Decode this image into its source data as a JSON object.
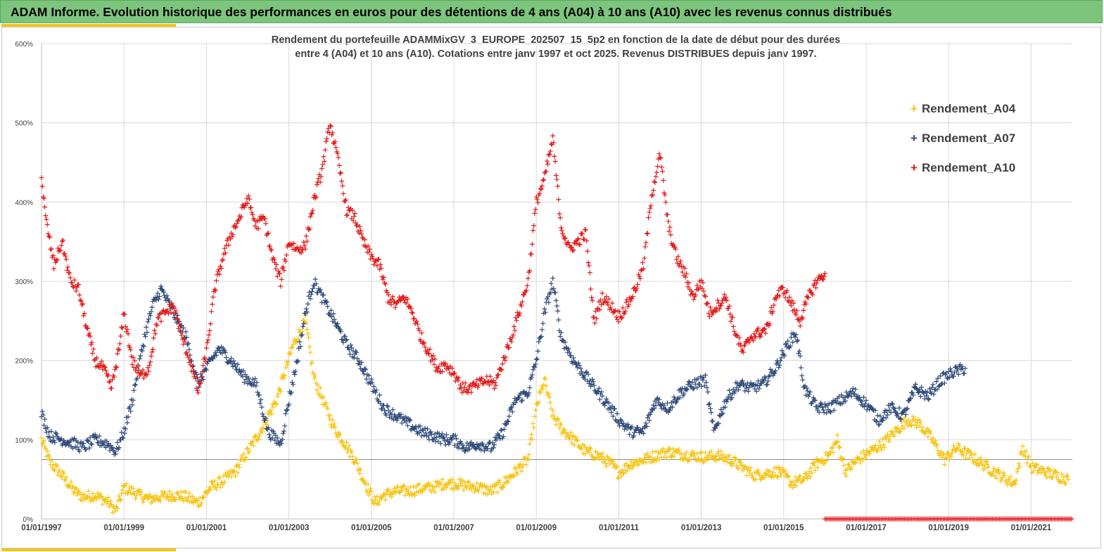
{
  "header": {
    "title": "ADAM Informe. Evolution historique des performances en euros pour des détentions de 4 ans (A04) à 10 ans (A10) avec les revenus connus distribués"
  },
  "colors": {
    "banner": "#7dc57d",
    "accent": "#f5c518"
  },
  "chart_data": {
    "type": "scatter",
    "marker": "plus",
    "title_line1": "Rendement du portefeuille ADAMMixGV_3_EUROPE_202507_15_5p2  en fonction de la date de début pour des durées",
    "title_line2": "entre 4 (A04) et 10 ans (A10). Cotations entre janv 1997 et oct 2025. Revenus DISTRIBUES depuis janv 1997.",
    "xlabel": "",
    "ylabel": "",
    "x_range": [
      "1997-01-01",
      "2022-01-01"
    ],
    "x_ticks": [
      "01/01/1997",
      "01/01/1999",
      "01/01/2001",
      "01/01/2003",
      "01/01/2005",
      "01/01/2007",
      "01/01/2009",
      "01/01/2011",
      "01/01/2013",
      "01/01/2015",
      "01/01/2017",
      "01/01/2019",
      "01/01/2021"
    ],
    "y_range": [
      0,
      600
    ],
    "y_ticks": [
      "0%",
      "100%",
      "200%",
      "300%",
      "400%",
      "500%",
      "600%"
    ],
    "reference_line_y": 75,
    "grid": true,
    "legend_position": "top-right",
    "series": [
      {
        "name": "Rendement_A04",
        "color": "#f5c518",
        "points": [
          [
            1997.0,
            100
          ],
          [
            1997.2,
            72
          ],
          [
            1997.5,
            55
          ],
          [
            1997.8,
            35
          ],
          [
            1998.0,
            28
          ],
          [
            1998.3,
            30
          ],
          [
            1998.6,
            22
          ],
          [
            1998.8,
            10
          ],
          [
            1999.0,
            40
          ],
          [
            1999.3,
            32
          ],
          [
            1999.6,
            25
          ],
          [
            1999.9,
            28
          ],
          [
            2000.2,
            30
          ],
          [
            2000.5,
            28
          ],
          [
            2000.8,
            20
          ],
          [
            2001.1,
            40
          ],
          [
            2001.4,
            48
          ],
          [
            2001.7,
            60
          ],
          [
            2002.0,
            85
          ],
          [
            2002.3,
            110
          ],
          [
            2002.5,
            130
          ],
          [
            2002.7,
            150
          ],
          [
            2002.9,
            185
          ],
          [
            2003.1,
            220
          ],
          [
            2003.3,
            240
          ],
          [
            2003.4,
            250
          ],
          [
            2003.6,
            180
          ],
          [
            2003.9,
            140
          ],
          [
            2004.1,
            115
          ],
          [
            2004.3,
            100
          ],
          [
            2004.6,
            75
          ],
          [
            2004.9,
            40
          ],
          [
            2005.1,
            20
          ],
          [
            2005.3,
            30
          ],
          [
            2005.6,
            35
          ],
          [
            2005.9,
            35
          ],
          [
            2006.2,
            38
          ],
          [
            2006.5,
            40
          ],
          [
            2006.8,
            45
          ],
          [
            2007.0,
            45
          ],
          [
            2007.3,
            42
          ],
          [
            2007.6,
            40
          ],
          [
            2007.9,
            35
          ],
          [
            2008.2,
            45
          ],
          [
            2008.5,
            60
          ],
          [
            2008.8,
            75
          ],
          [
            2009.0,
            140
          ],
          [
            2009.2,
            175
          ],
          [
            2009.4,
            130
          ],
          [
            2009.6,
            115
          ],
          [
            2009.9,
            100
          ],
          [
            2010.2,
            85
          ],
          [
            2010.5,
            80
          ],
          [
            2010.8,
            70
          ],
          [
            2011.0,
            58
          ],
          [
            2011.3,
            70
          ],
          [
            2011.6,
            75
          ],
          [
            2011.9,
            80
          ],
          [
            2012.2,
            85
          ],
          [
            2012.5,
            82
          ],
          [
            2012.8,
            80
          ],
          [
            2013.1,
            78
          ],
          [
            2013.4,
            80
          ],
          [
            2013.7,
            75
          ],
          [
            2014.0,
            65
          ],
          [
            2014.3,
            55
          ],
          [
            2014.6,
            58
          ],
          [
            2014.9,
            60
          ],
          [
            2015.2,
            45
          ],
          [
            2015.5,
            50
          ],
          [
            2015.8,
            70
          ],
          [
            2016.1,
            80
          ],
          [
            2016.3,
            100
          ],
          [
            2016.5,
            60
          ],
          [
            2016.8,
            75
          ],
          [
            2017.1,
            85
          ],
          [
            2017.4,
            95
          ],
          [
            2017.7,
            110
          ],
          [
            2018.0,
            125
          ],
          [
            2018.3,
            120
          ],
          [
            2018.6,
            100
          ],
          [
            2018.9,
            75
          ],
          [
            2019.2,
            90
          ],
          [
            2019.5,
            80
          ],
          [
            2019.8,
            70
          ],
          [
            2020.1,
            60
          ],
          [
            2020.4,
            50
          ],
          [
            2020.6,
            45
          ],
          [
            2020.8,
            90
          ],
          [
            2021.0,
            65
          ],
          [
            2021.3,
            60
          ],
          [
            2021.6,
            55
          ],
          [
            2021.9,
            50
          ]
        ]
      },
      {
        "name": "Rendement_A07",
        "color": "#2e4a7a",
        "points": [
          [
            1997.0,
            133
          ],
          [
            1997.2,
            105
          ],
          [
            1997.5,
            100
          ],
          [
            1997.8,
            95
          ],
          [
            1998.0,
            90
          ],
          [
            1998.3,
            100
          ],
          [
            1998.6,
            95
          ],
          [
            1998.8,
            85
          ],
          [
            1999.0,
            110
          ],
          [
            1999.2,
            150
          ],
          [
            1999.5,
            230
          ],
          [
            1999.7,
            270
          ],
          [
            1999.9,
            290
          ],
          [
            2000.2,
            260
          ],
          [
            2000.5,
            230
          ],
          [
            2000.8,
            170
          ],
          [
            2001.0,
            190
          ],
          [
            2001.3,
            215
          ],
          [
            2001.6,
            200
          ],
          [
            2001.9,
            180
          ],
          [
            2002.2,
            170
          ],
          [
            2002.5,
            110
          ],
          [
            2002.8,
            95
          ],
          [
            2003.0,
            150
          ],
          [
            2003.2,
            200
          ],
          [
            2003.4,
            260
          ],
          [
            2003.6,
            300
          ],
          [
            2003.8,
            280
          ],
          [
            2004.1,
            250
          ],
          [
            2004.4,
            220
          ],
          [
            2004.7,
            200
          ],
          [
            2005.0,
            170
          ],
          [
            2005.3,
            140
          ],
          [
            2005.6,
            130
          ],
          [
            2005.9,
            120
          ],
          [
            2006.2,
            110
          ],
          [
            2006.5,
            105
          ],
          [
            2006.8,
            100
          ],
          [
            2007.0,
            100
          ],
          [
            2007.3,
            90
          ],
          [
            2007.6,
            95
          ],
          [
            2007.9,
            90
          ],
          [
            2008.2,
            110
          ],
          [
            2008.5,
            150
          ],
          [
            2008.8,
            160
          ],
          [
            2009.0,
            200
          ],
          [
            2009.2,
            260
          ],
          [
            2009.4,
            300
          ],
          [
            2009.6,
            230
          ],
          [
            2009.9,
            200
          ],
          [
            2010.2,
            180
          ],
          [
            2010.5,
            160
          ],
          [
            2010.8,
            140
          ],
          [
            2011.0,
            125
          ],
          [
            2011.3,
            110
          ],
          [
            2011.6,
            110
          ],
          [
            2011.9,
            150
          ],
          [
            2012.2,
            140
          ],
          [
            2012.5,
            160
          ],
          [
            2012.8,
            170
          ],
          [
            2013.1,
            175
          ],
          [
            2013.3,
            110
          ],
          [
            2013.6,
            150
          ],
          [
            2013.9,
            170
          ],
          [
            2014.2,
            165
          ],
          [
            2014.5,
            170
          ],
          [
            2014.8,
            190
          ],
          [
            2015.1,
            220
          ],
          [
            2015.3,
            235
          ],
          [
            2015.5,
            165
          ],
          [
            2015.8,
            140
          ],
          [
            2016.1,
            140
          ],
          [
            2016.4,
            150
          ],
          [
            2016.7,
            160
          ],
          [
            2017.0,
            145
          ],
          [
            2017.3,
            125
          ],
          [
            2017.6,
            140
          ],
          [
            2017.9,
            130
          ],
          [
            2018.2,
            165
          ],
          [
            2018.5,
            155
          ],
          [
            2018.8,
            175
          ],
          [
            2019.1,
            185
          ],
          [
            2019.4,
            190
          ]
        ]
      },
      {
        "name": "Rendement_A10",
        "color": "#e31c1c",
        "points": [
          [
            1997.0,
            430
          ],
          [
            1997.1,
            380
          ],
          [
            1997.3,
            320
          ],
          [
            1997.5,
            350
          ],
          [
            1997.7,
            300
          ],
          [
            1997.9,
            290
          ],
          [
            1998.1,
            240
          ],
          [
            1998.3,
            200
          ],
          [
            1998.5,
            190
          ],
          [
            1998.7,
            165
          ],
          [
            1998.9,
            220
          ],
          [
            1999.0,
            260
          ],
          [
            1999.2,
            200
          ],
          [
            1999.4,
            180
          ],
          [
            1999.6,
            190
          ],
          [
            1999.8,
            250
          ],
          [
            2000.0,
            260
          ],
          [
            2000.2,
            270
          ],
          [
            2000.4,
            230
          ],
          [
            2000.6,
            200
          ],
          [
            2000.8,
            160
          ],
          [
            2001.0,
            210
          ],
          [
            2001.2,
            290
          ],
          [
            2001.4,
            330
          ],
          [
            2001.6,
            360
          ],
          [
            2001.8,
            380
          ],
          [
            2002.0,
            405
          ],
          [
            2002.2,
            370
          ],
          [
            2002.4,
            380
          ],
          [
            2002.6,
            330
          ],
          [
            2002.8,
            300
          ],
          [
            2003.0,
            350
          ],
          [
            2003.2,
            340
          ],
          [
            2003.4,
            345
          ],
          [
            2003.6,
            400
          ],
          [
            2003.8,
            440
          ],
          [
            2004.0,
            500
          ],
          [
            2004.2,
            450
          ],
          [
            2004.4,
            390
          ],
          [
            2004.6,
            380
          ],
          [
            2004.8,
            350
          ],
          [
            2005.0,
            330
          ],
          [
            2005.2,
            320
          ],
          [
            2005.4,
            280
          ],
          [
            2005.6,
            270
          ],
          [
            2005.8,
            280
          ],
          [
            2006.0,
            260
          ],
          [
            2006.2,
            230
          ],
          [
            2006.4,
            210
          ],
          [
            2006.6,
            190
          ],
          [
            2006.8,
            195
          ],
          [
            2007.0,
            185
          ],
          [
            2007.2,
            165
          ],
          [
            2007.4,
            165
          ],
          [
            2007.6,
            170
          ],
          [
            2007.8,
            175
          ],
          [
            2008.0,
            170
          ],
          [
            2008.2,
            200
          ],
          [
            2008.4,
            230
          ],
          [
            2008.6,
            265
          ],
          [
            2008.8,
            300
          ],
          [
            2009.0,
            400
          ],
          [
            2009.2,
            430
          ],
          [
            2009.4,
            480
          ],
          [
            2009.6,
            370
          ],
          [
            2009.8,
            340
          ],
          [
            2010.0,
            350
          ],
          [
            2010.2,
            360
          ],
          [
            2010.4,
            250
          ],
          [
            2010.6,
            280
          ],
          [
            2010.8,
            270
          ],
          [
            2011.0,
            255
          ],
          [
            2011.2,
            270
          ],
          [
            2011.4,
            290
          ],
          [
            2011.6,
            320
          ],
          [
            2011.8,
            410
          ],
          [
            2012.0,
            460
          ],
          [
            2012.2,
            370
          ],
          [
            2012.4,
            330
          ],
          [
            2012.6,
            310
          ],
          [
            2012.8,
            280
          ],
          [
            2013.0,
            300
          ],
          [
            2013.2,
            260
          ],
          [
            2013.4,
            270
          ],
          [
            2013.6,
            280
          ],
          [
            2013.8,
            240
          ],
          [
            2014.0,
            210
          ],
          [
            2014.2,
            230
          ],
          [
            2014.4,
            235
          ],
          [
            2014.6,
            240
          ],
          [
            2014.8,
            280
          ],
          [
            2015.0,
            290
          ],
          [
            2015.2,
            270
          ],
          [
            2015.4,
            250
          ],
          [
            2015.6,
            280
          ],
          [
            2015.8,
            300
          ],
          [
            2016.0,
            310
          ]
        ]
      }
    ],
    "right_baseline_band": {
      "series": "Rendement_A10",
      "x_start": 2016.0,
      "x_end": 2022.0,
      "y": 0
    }
  }
}
